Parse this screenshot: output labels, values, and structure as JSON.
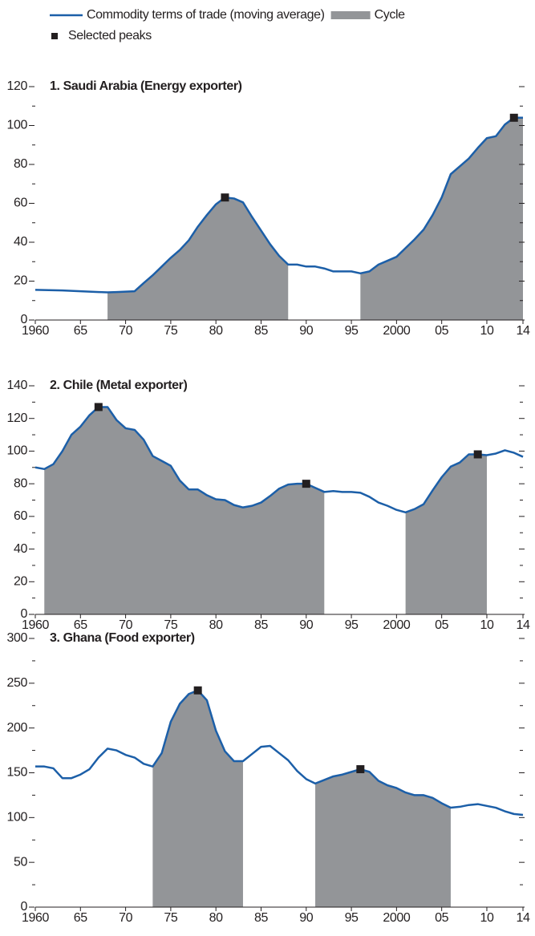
{
  "legend": {
    "line": {
      "label": "Commodity terms of trade (moving average)",
      "color": "#1c5fa8"
    },
    "cycle": {
      "label": "Cycle",
      "color": "#939598"
    },
    "peaks": {
      "label": "Selected peaks",
      "color": "#231f20"
    }
  },
  "chart_data": [
    {
      "type": "line",
      "title": "1. Saudi Arabia (Energy exporter)",
      "x": [
        1960,
        1961,
        1962,
        1963,
        1964,
        1965,
        1966,
        1967,
        1968,
        1969,
        1970,
        1971,
        1972,
        1973,
        1974,
        1975,
        1976,
        1977,
        1978,
        1979,
        1980,
        1981,
        1982,
        1983,
        1984,
        1985,
        1986,
        1987,
        1988,
        1989,
        1990,
        1991,
        1992,
        1993,
        1994,
        1995,
        1996,
        1997,
        1998,
        1999,
        2000,
        2001,
        2002,
        2003,
        2004,
        2005,
        2006,
        2007,
        2008,
        2009,
        2010,
        2011,
        2012,
        2013,
        2014
      ],
      "values": [
        15.5,
        15.4,
        15.3,
        15.2,
        15.0,
        14.8,
        14.6,
        14.4,
        14.2,
        14.4,
        14.6,
        14.8,
        19,
        23,
        27.5,
        32,
        36,
        41,
        48,
        54,
        59.5,
        63,
        62.5,
        60.5,
        53,
        46,
        39,
        33,
        28.5,
        28.5,
        27.5,
        27.5,
        26.5,
        25,
        25,
        25,
        24,
        25,
        28.5,
        30.5,
        32.5,
        37,
        41.5,
        46.5,
        54,
        63,
        75,
        79,
        83,
        88.5,
        93.5,
        94.5,
        100.5,
        104,
        104
      ],
      "cycles": [
        [
          1968,
          1988
        ],
        [
          1996,
          2014
        ]
      ],
      "peaks": {
        "x": [
          1981,
          2013
        ],
        "values": [
          63,
          104
        ]
      },
      "xlim": [
        1960,
        2014
      ],
      "xticks": [
        1960,
        {
          "value": 1965,
          "label": "65"
        },
        {
          "value": 1970,
          "label": "70"
        },
        {
          "value": 1975,
          "label": "75"
        },
        {
          "value": 1980,
          "label": "80"
        },
        {
          "value": 1985,
          "label": "85"
        },
        {
          "value": 1990,
          "label": "90"
        },
        {
          "value": 1995,
          "label": "95"
        },
        2000,
        {
          "value": 2005,
          "label": "05"
        },
        {
          "value": 2010,
          "label": "10"
        },
        {
          "value": 2014,
          "label": "14"
        }
      ],
      "ylim": [
        0,
        120
      ],
      "yticks": [
        0,
        20,
        40,
        60,
        80,
        100,
        120
      ],
      "yminorticks": [
        10,
        30,
        50,
        70,
        90,
        110
      ]
    },
    {
      "type": "line",
      "title": "2. Chile (Metal exporter)",
      "x": [
        1960,
        1961,
        1962,
        1963,
        1964,
        1965,
        1966,
        1967,
        1968,
        1969,
        1970,
        1971,
        1972,
        1973,
        1974,
        1975,
        1976,
        1977,
        1978,
        1979,
        1980,
        1981,
        1982,
        1983,
        1984,
        1985,
        1986,
        1987,
        1988,
        1989,
        1990,
        1991,
        1992,
        1993,
        1994,
        1995,
        1996,
        1997,
        1998,
        1999,
        2000,
        2001,
        2002,
        2003,
        2004,
        2005,
        2006,
        2007,
        2008,
        2009,
        2010,
        2011,
        2012,
        2013,
        2014
      ],
      "values": [
        90,
        89,
        92,
        100,
        110,
        115,
        122,
        127,
        127,
        119,
        114,
        113,
        107,
        97,
        94,
        91,
        82,
        76.5,
        76.5,
        73,
        70.5,
        70,
        67,
        65.5,
        66.5,
        68.5,
        72.5,
        77,
        79.5,
        80,
        80,
        77.5,
        75,
        75.5,
        75,
        75,
        74.5,
        72,
        68.5,
        66.5,
        64,
        62.5,
        64.5,
        67.5,
        76,
        84,
        90.5,
        93,
        98,
        98,
        97.5,
        98.5,
        100.5,
        99,
        96.5
      ],
      "cycles": [
        [
          1961,
          1992
        ],
        [
          2001,
          2010
        ]
      ],
      "peaks": {
        "x": [
          1967,
          1990,
          2009
        ],
        "values": [
          127,
          80,
          98
        ]
      },
      "xlim": [
        1960,
        2014
      ],
      "xticks": [
        1960,
        {
          "value": 1965,
          "label": "65"
        },
        {
          "value": 1970,
          "label": "70"
        },
        {
          "value": 1975,
          "label": "75"
        },
        {
          "value": 1980,
          "label": "80"
        },
        {
          "value": 1985,
          "label": "85"
        },
        {
          "value": 1990,
          "label": "90"
        },
        {
          "value": 1995,
          "label": "95"
        },
        2000,
        {
          "value": 2005,
          "label": "05"
        },
        {
          "value": 2010,
          "label": "10"
        },
        {
          "value": 2014,
          "label": "14"
        }
      ],
      "ylim": [
        0,
        140
      ],
      "yticks": [
        0,
        20,
        40,
        60,
        80,
        100,
        120,
        140
      ],
      "yminorticks": [
        10,
        30,
        50,
        70,
        90,
        110,
        130
      ]
    },
    {
      "type": "line",
      "title": "3. Ghana (Food exporter)",
      "x": [
        1960,
        1961,
        1962,
        1963,
        1964,
        1965,
        1966,
        1967,
        1968,
        1969,
        1970,
        1971,
        1972,
        1973,
        1974,
        1975,
        1976,
        1977,
        1978,
        1979,
        1980,
        1981,
        1982,
        1983,
        1984,
        1985,
        1986,
        1987,
        1988,
        1989,
        1990,
        1991,
        1992,
        1993,
        1994,
        1995,
        1996,
        1997,
        1998,
        1999,
        2000,
        2001,
        2002,
        2003,
        2004,
        2005,
        2006,
        2007,
        2008,
        2009,
        2010,
        2011,
        2012,
        2013,
        2014
      ],
      "values": [
        157,
        157,
        155,
        144,
        144,
        148,
        154,
        167,
        177,
        175,
        170,
        167,
        160,
        157,
        172,
        207,
        227,
        238,
        242,
        231,
        197,
        174,
        163,
        163,
        171,
        179,
        180,
        172,
        164,
        152,
        143,
        138,
        142,
        146,
        148,
        151,
        154,
        151,
        141,
        136,
        133,
        128,
        125,
        125,
        122,
        116,
        111,
        112,
        114,
        115,
        113,
        111,
        107,
        104,
        103
      ],
      "cycles": [
        [
          1973,
          1983
        ],
        [
          1991,
          2006
        ]
      ],
      "peaks": {
        "x": [
          1978,
          1996
        ],
        "values": [
          242,
          154
        ]
      },
      "xlim": [
        1960,
        2014
      ],
      "xticks": [
        1960,
        {
          "value": 1965,
          "label": "65"
        },
        {
          "value": 1970,
          "label": "70"
        },
        {
          "value": 1975,
          "label": "75"
        },
        {
          "value": 1980,
          "label": "80"
        },
        {
          "value": 1985,
          "label": "85"
        },
        {
          "value": 1990,
          "label": "90"
        },
        {
          "value": 1995,
          "label": "95"
        },
        2000,
        {
          "value": 2005,
          "label": "05"
        },
        {
          "value": 2010,
          "label": "10"
        },
        {
          "value": 2014,
          "label": "14"
        }
      ],
      "ylim": [
        0,
        300
      ],
      "yticks": [
        0,
        50,
        100,
        150,
        200,
        250,
        300
      ],
      "yminorticks": [
        25,
        75,
        125,
        175,
        225,
        275
      ]
    }
  ]
}
